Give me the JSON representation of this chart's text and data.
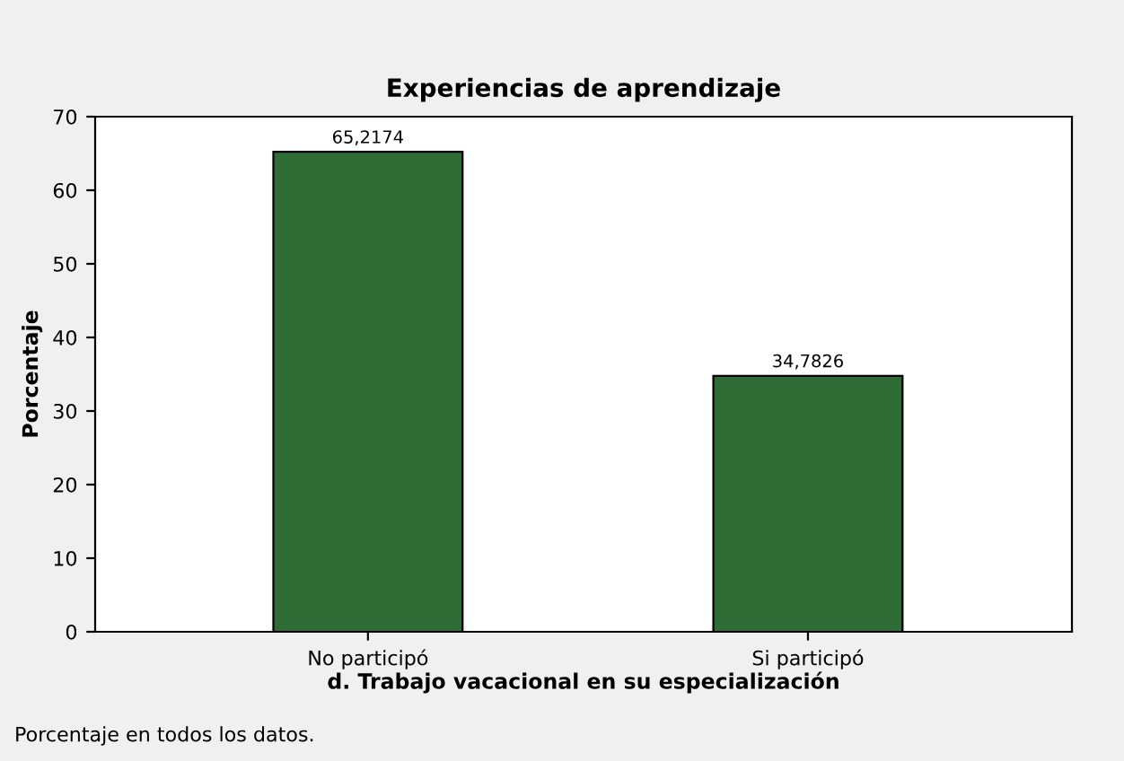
{
  "chart_data": {
    "type": "bar",
    "title": "Experiencias de aprendizaje",
    "xlabel": "d. Trabajo vacacional en su especialización",
    "ylabel": "Porcentaje",
    "categories": [
      "No participó",
      "Si participó"
    ],
    "values": [
      65.2174,
      34.7826
    ],
    "value_labels": [
      "65,2174",
      "34,7826"
    ],
    "color": "#2f6b34",
    "ylim": [
      0,
      70
    ],
    "yticks": [
      0,
      10,
      20,
      30,
      40,
      50,
      60,
      70
    ],
    "grid": false,
    "annotations": [
      "Porcentaje en todos los datos."
    ]
  }
}
